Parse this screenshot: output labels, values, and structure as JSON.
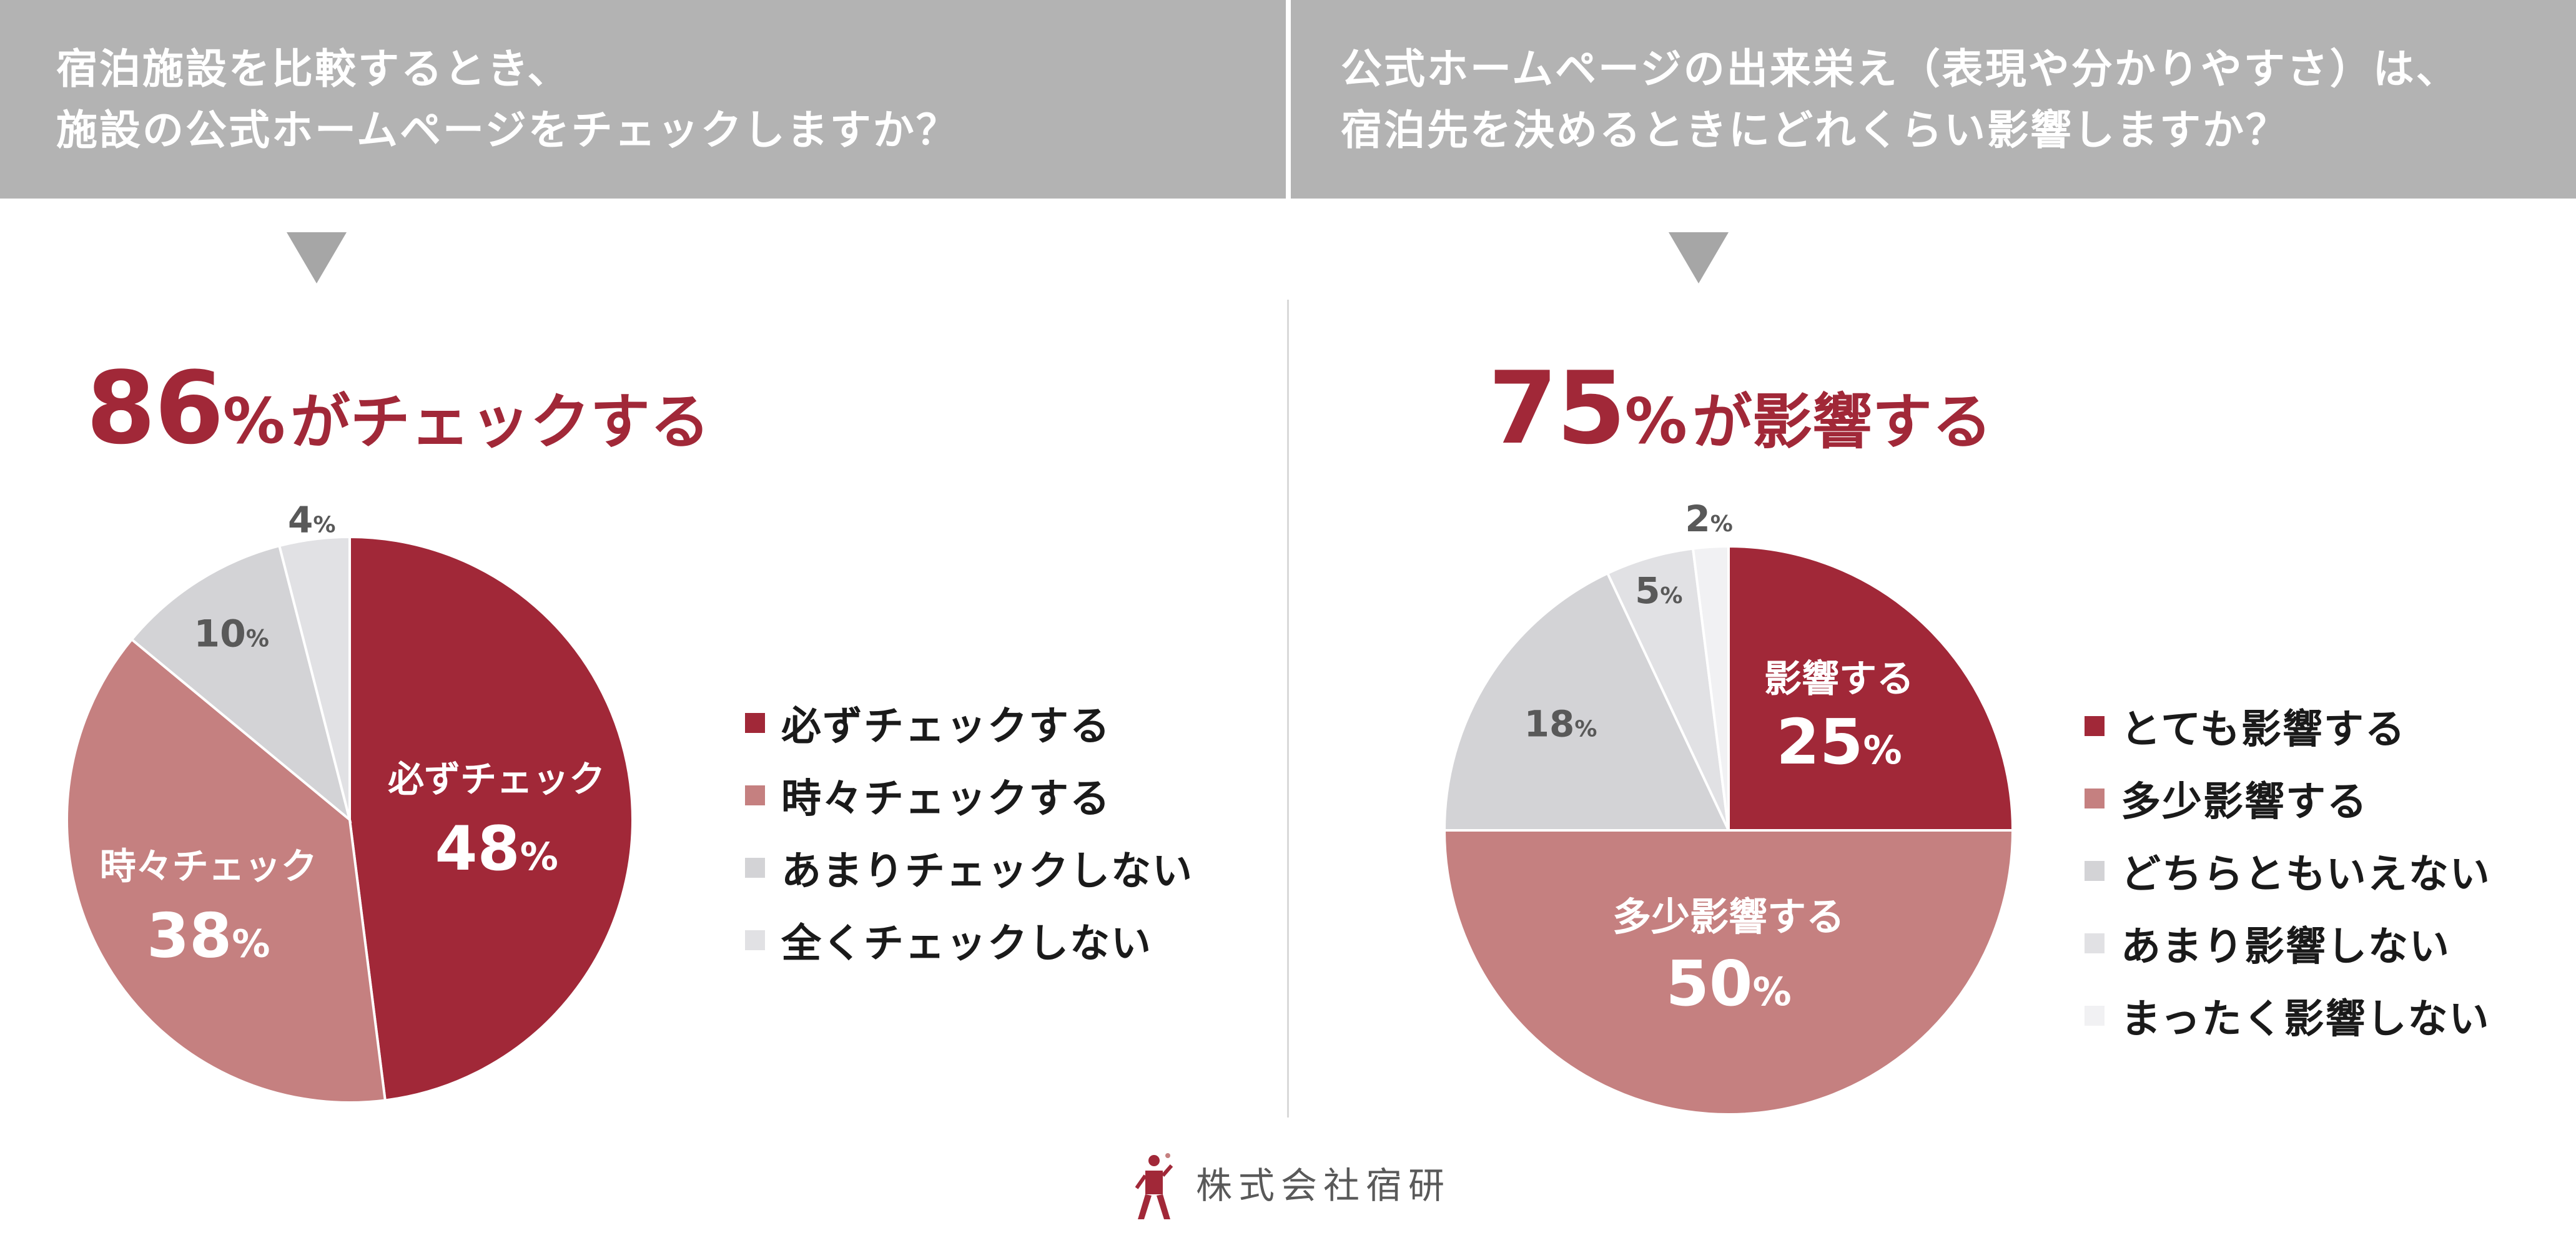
{
  "left": {
    "question_line1": "宿泊施設を比較するとき、",
    "question_line2": "施設の公式ホームページをチェックしますか？",
    "headline_number": "86",
    "headline_pct": "%",
    "headline_text": "がチェックする"
  },
  "right": {
    "question_line1": "公式ホームページの出来栄え（表現や分かりやすさ）は、",
    "question_line2": "宿泊先を決めるときにどれくらい影響しますか？",
    "headline_number": "75",
    "headline_pct": "%",
    "headline_text": "が影響する"
  },
  "colors": {
    "header_bg": "#b3b3b3",
    "accent": "#a12838",
    "divider": "#d9d9d9"
  },
  "chart_data": [
    {
      "type": "pie",
      "categories": [
        "必ずチェックする",
        "時々チェックする",
        "あまりチェックしない",
        "全くチェックしない"
      ],
      "values": [
        48,
        38,
        10,
        4
      ],
      "colors": [
        "#a12838",
        "#c58080",
        "#d3d3d6",
        "#e1e1e4"
      ],
      "slice_labels": [
        {
          "name": "必ずチェック",
          "value": "48"
        },
        {
          "name": "時々チェック",
          "value": "38"
        },
        {
          "name": "",
          "value": "10"
        },
        {
          "name": "",
          "value": "4"
        }
      ],
      "legend_position": "right"
    },
    {
      "type": "pie",
      "categories": [
        "とても影響する",
        "多少影響する",
        "どちらともいえない",
        "あまり影響しない",
        "まったく影響しない"
      ],
      "values": [
        25,
        50,
        18,
        5,
        2
      ],
      "colors": [
        "#a12838",
        "#c58080",
        "#d3d3d6",
        "#e1e1e4",
        "#f1f1f3"
      ],
      "slice_labels": [
        {
          "name": "影響する",
          "value": "25"
        },
        {
          "name": "多少影響する",
          "value": "50"
        },
        {
          "name": "",
          "value": "18"
        },
        {
          "name": "",
          "value": "5"
        },
        {
          "name": "",
          "value": "2"
        }
      ],
      "legend_position": "right"
    }
  ],
  "footer": {
    "company": "株式会社宿研"
  }
}
